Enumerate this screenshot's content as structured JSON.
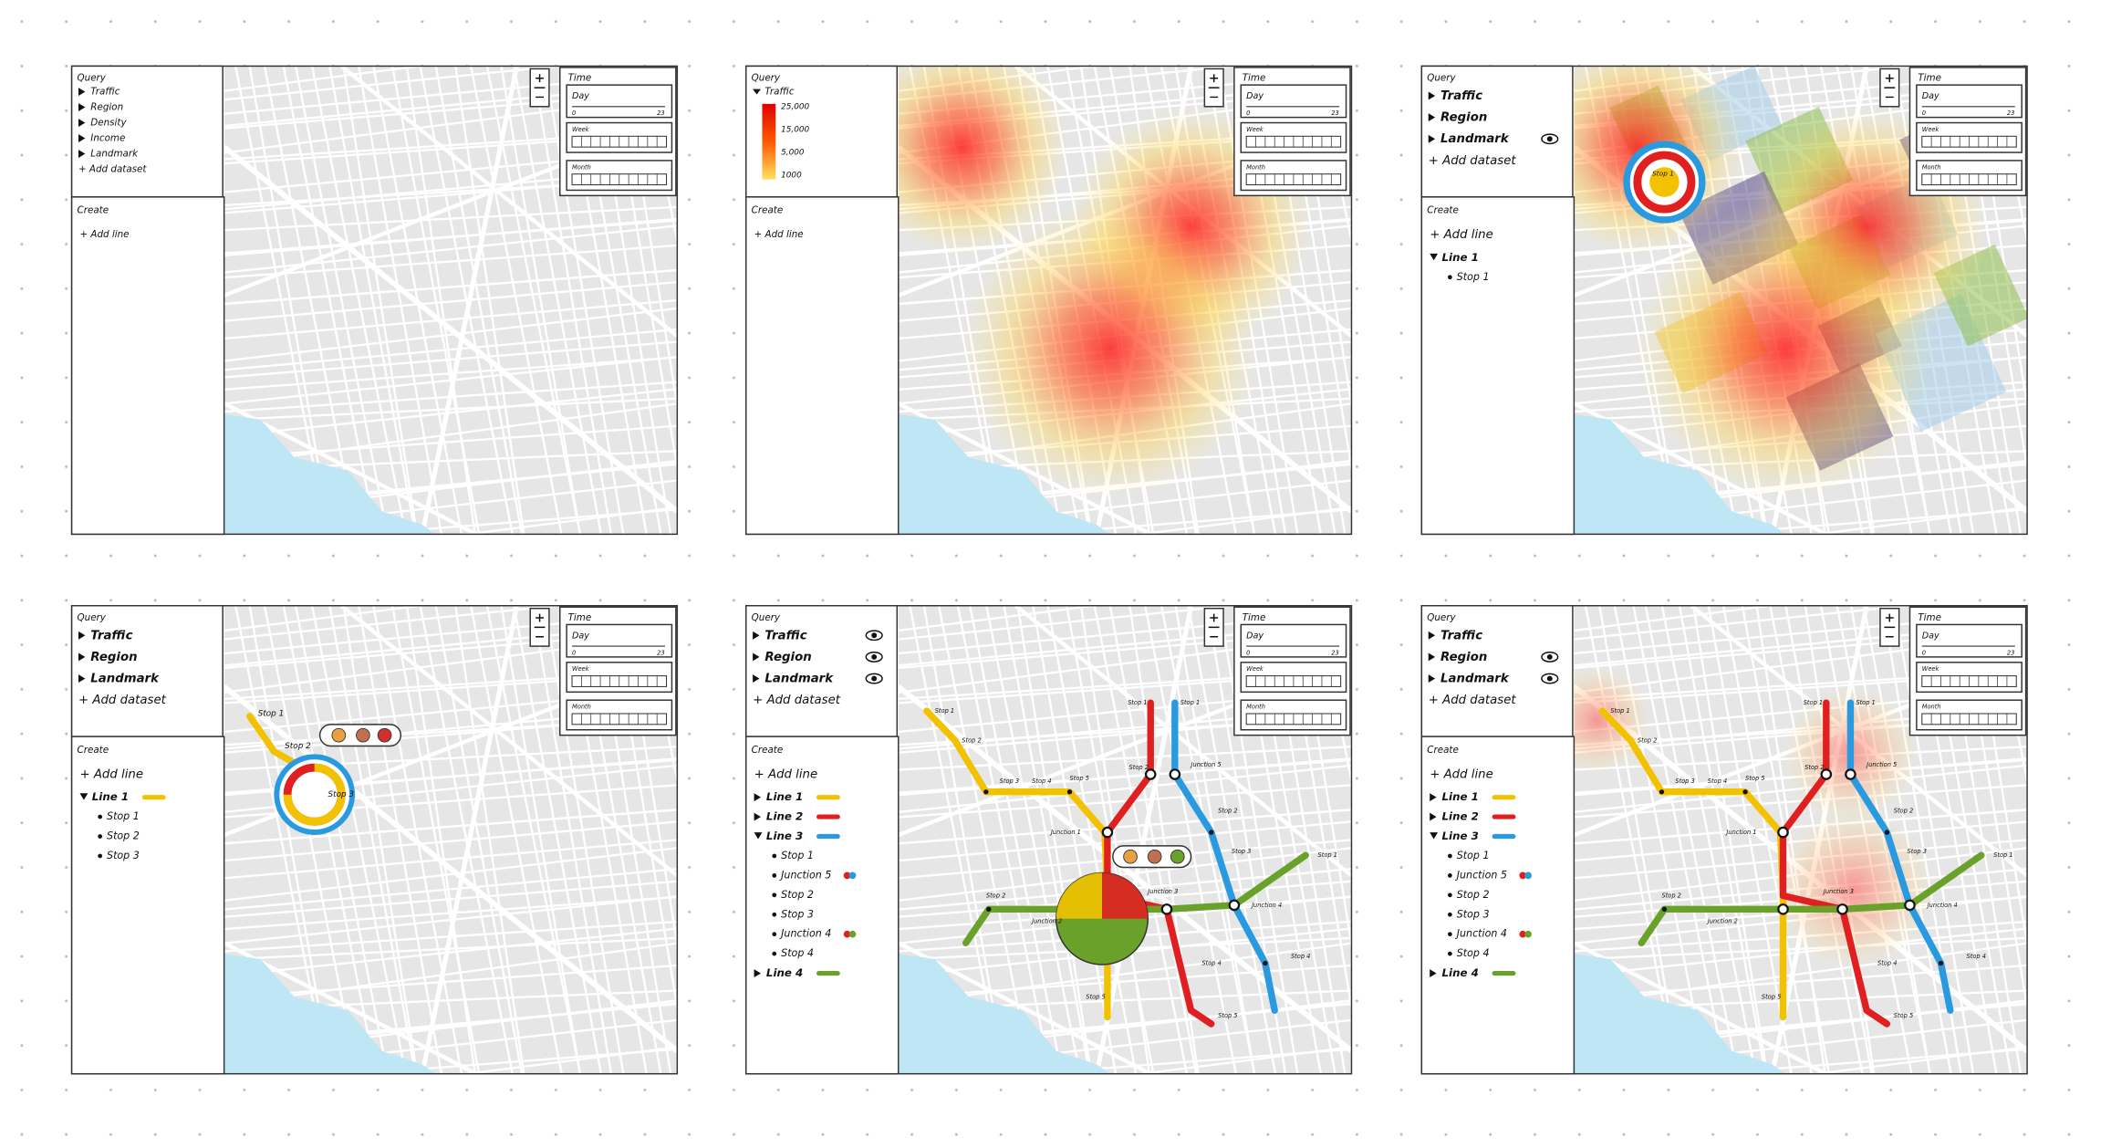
{
  "time": {
    "title": "Time",
    "day": "Day",
    "min": "0",
    "max": "23",
    "week": "Week",
    "month": "Month"
  },
  "panels": [
    {
      "query": {
        "title": "Query",
        "items": [
          "Traffic",
          "Region",
          "Density",
          "Income",
          "Landmark"
        ],
        "add": "+ Add dataset"
      },
      "create": {
        "title": "Create",
        "add": "+ Add line",
        "lines": []
      },
      "map_labels": []
    },
    {
      "query": {
        "title": "Query",
        "items": [
          "Traffic"
        ],
        "legend": [
          "25,000",
          "15,000",
          "5,000",
          "1000"
        ]
      },
      "create": {
        "title": "Create",
        "add": "+ Add line",
        "lines": []
      },
      "map_labels": []
    },
    {
      "query": {
        "title": "Query",
        "items": [
          "Traffic",
          "Region",
          "Landmark"
        ],
        "add": "+ Add dataset"
      },
      "create": {
        "title": "Create",
        "add": "+ Add line",
        "lines": [
          {
            "label": "Line 1",
            "stops": [
              "Stop 1"
            ]
          }
        ]
      },
      "map_labels": [
        "Stop 1"
      ]
    },
    {
      "query": {
        "title": "Query",
        "items": [
          "Traffic",
          "Region",
          "Landmark"
        ],
        "add": "+ Add dataset"
      },
      "create": {
        "title": "Create",
        "add": "+ Add line",
        "lines": [
          {
            "label": "Line 1",
            "color": "#f2c200",
            "stops": [
              "Stop 1",
              "Stop 2",
              "Stop 3"
            ]
          }
        ]
      },
      "map_labels": [
        "Stop 1",
        "Stop 2",
        "Stop 3"
      ]
    },
    {
      "query": {
        "title": "Query",
        "items": [
          "Traffic",
          "Region",
          "Landmark"
        ],
        "add": "+ Add dataset"
      },
      "create": {
        "title": "Create",
        "add": "+ Add line",
        "lines": [
          {
            "label": "Line 1",
            "color": "#f2c200",
            "stops": []
          },
          {
            "label": "Line 2",
            "color": "#e02020",
            "stops": []
          },
          {
            "label": "Line 3",
            "color": "#2a9ae0",
            "stops": [
              "Stop 1",
              "Junction 5",
              "Stop 2",
              "Stop 3",
              "Junction 4",
              "Stop 4"
            ]
          },
          {
            "label": "Line 4",
            "color": "#6aa12a",
            "stops": []
          }
        ]
      },
      "map_labels": [
        "Stop 1",
        "Stop 2",
        "Stop 3",
        "Stop 4",
        "Stop 5",
        "Junction 1",
        "Stop 1",
        "Stop 1",
        "Stop 2",
        "Junction 5",
        "Stop 2",
        "Stop 3",
        "Junction 3",
        "Junction 4",
        "Stop 1",
        "Stop 2",
        "Junction 2",
        "Stop 4",
        "Stop 4",
        "Stop 5",
        "Stop 5"
      ]
    },
    {
      "query": {
        "title": "Query",
        "items": [
          "Traffic",
          "Region",
          "Landmark"
        ],
        "add": "+ Add dataset"
      },
      "create": {
        "title": "Create",
        "add": "+ Add line",
        "lines": [
          {
            "label": "Line 1",
            "color": "#f2c200",
            "stops": []
          },
          {
            "label": "Line 2",
            "color": "#e02020",
            "stops": []
          },
          {
            "label": "Line 3",
            "color": "#2a9ae0",
            "stops": [
              "Stop 1",
              "Junction 5",
              "Stop 2",
              "Stop 3",
              "Junction 4",
              "Stop 4"
            ]
          },
          {
            "label": "Line 4",
            "color": "#6aa12a",
            "stops": []
          }
        ]
      },
      "map_labels": [
        "Stop 1",
        "Stop 2",
        "Stop 3",
        "Stop 4",
        "Stop 5",
        "Junction 1",
        "Stop 1",
        "Stop 1",
        "Stop 2",
        "Junction 5",
        "Stop 2",
        "Stop 3",
        "Junction 3",
        "Junction 4",
        "Stop 1",
        "Stop 2",
        "Junction 2",
        "Stop 4",
        "Stop 4",
        "Stop 5",
        "Stop 5"
      ]
    }
  ]
}
